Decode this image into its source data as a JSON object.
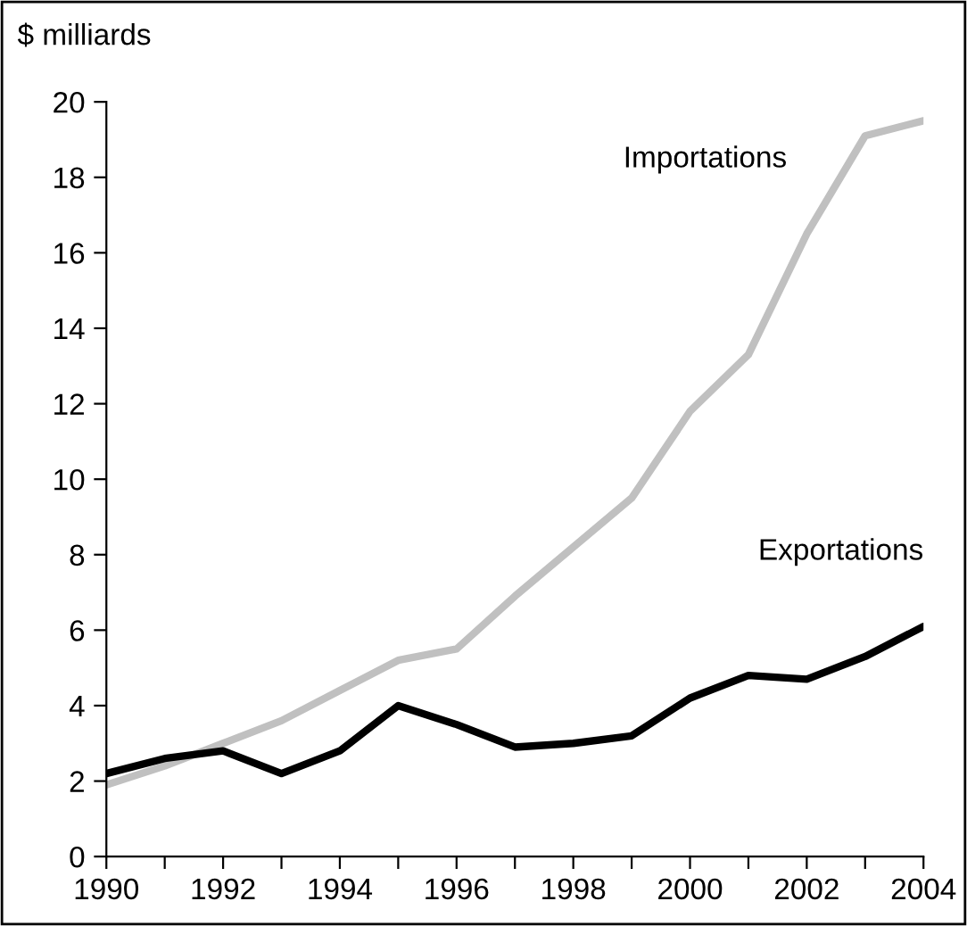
{
  "chart_data": {
    "type": "line",
    "ylabel": "$ milliards",
    "x": [
      1990,
      1991,
      1992,
      1993,
      1994,
      1995,
      1996,
      1997,
      1998,
      1999,
      2000,
      2001,
      2002,
      2003,
      2004
    ],
    "series": [
      {
        "name": "Importations",
        "color": "#c0c0c0",
        "values": [
          1.9,
          2.4,
          3.0,
          3.6,
          4.4,
          5.2,
          5.5,
          6.9,
          8.2,
          9.5,
          11.8,
          13.3,
          16.5,
          19.1,
          19.5
        ]
      },
      {
        "name": "Exportations",
        "color": "#000000",
        "values": [
          2.2,
          2.6,
          2.8,
          2.2,
          2.8,
          4.0,
          3.5,
          2.9,
          3.0,
          3.2,
          4.2,
          4.8,
          4.7,
          5.3,
          6.1
        ]
      }
    ],
    "xlim": [
      1990,
      2004
    ],
    "xticks": [
      1990,
      {
        "value": 1991,
        "label": null
      },
      1992,
      {
        "value": 1993,
        "label": null
      },
      1994,
      {
        "value": 1995,
        "label": null
      },
      1996,
      {
        "value": 1997,
        "label": null
      },
      1998,
      {
        "value": 1999,
        "label": null
      },
      2000,
      {
        "value": 2001,
        "label": null
      },
      2002,
      {
        "value": 2003,
        "label": null
      },
      2004
    ],
    "ylim": [
      0,
      20
    ],
    "yticks": [
      0,
      2,
      4,
      6,
      8,
      10,
      12,
      14,
      16,
      18,
      20
    ],
    "grid": false,
    "legend": false,
    "marker": "none",
    "line_style": "solid"
  }
}
